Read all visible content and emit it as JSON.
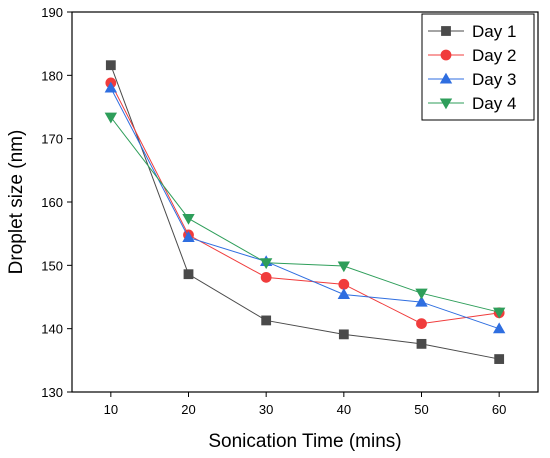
{
  "chart_data": {
    "type": "line",
    "title": "",
    "xlabel": "Sonication Time (mins)",
    "ylabel": "Droplet size (nm)",
    "x": [
      10,
      20,
      30,
      40,
      50,
      60
    ],
    "xlim": [
      5,
      65
    ],
    "ylim": [
      130,
      190
    ],
    "xticks": [
      "10",
      "20",
      "30",
      "40",
      "50",
      "60"
    ],
    "yticks": [
      "130",
      "140",
      "150",
      "160",
      "170",
      "180",
      "190"
    ],
    "grid": false,
    "legend_position": "top-right",
    "series": [
      {
        "name": "Day 1",
        "marker": "square",
        "color": "#4a4a4a",
        "values": [
          181.6,
          148.6,
          141.3,
          139.1,
          137.6,
          135.2
        ]
      },
      {
        "name": "Day 2",
        "marker": "circle",
        "color": "#f03c3c",
        "values": [
          178.8,
          154.8,
          148.1,
          147.0,
          140.8,
          142.5
        ]
      },
      {
        "name": "Day 3",
        "marker": "triangle-up",
        "color": "#2f6ee0",
        "values": [
          178.0,
          154.4,
          150.6,
          145.4,
          144.2,
          140.0
        ]
      },
      {
        "name": "Day 4",
        "marker": "triangle-down",
        "color": "#2e9e5a",
        "values": [
          173.4,
          157.4,
          150.4,
          149.9,
          145.6,
          142.6
        ]
      }
    ]
  }
}
